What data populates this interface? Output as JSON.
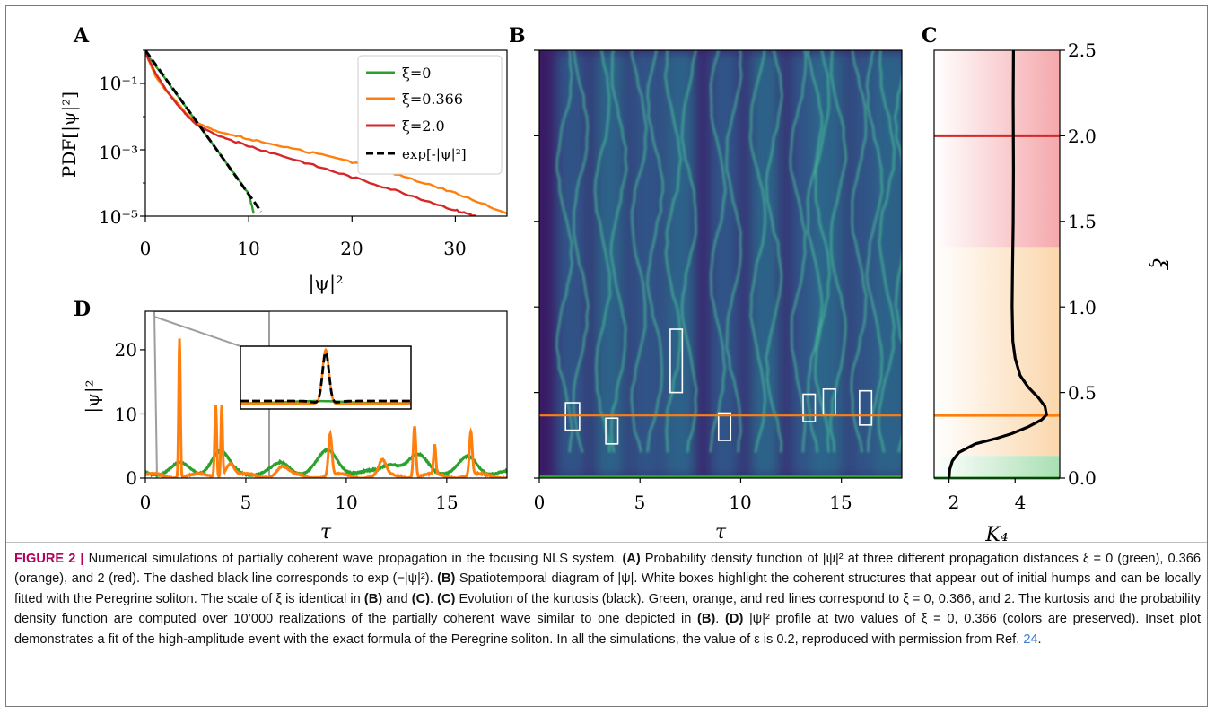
{
  "panels": {
    "A": {
      "letter": "A",
      "ylabel": "PDF[|ψ|²]",
      "xlabel": "|ψ|²",
      "xticks": [
        "0",
        "10",
        "20",
        "30"
      ],
      "yticks": [
        "10⁻¹",
        "10⁻³",
        "10⁻⁵"
      ],
      "legend": [
        "ξ=0",
        "ξ=0.366",
        "ξ=2.0",
        "exp[-|ψ|²]"
      ]
    },
    "B": {
      "letter": "B",
      "xlabel": "τ",
      "xticks": [
        "0",
        "5",
        "10",
        "15"
      ]
    },
    "C": {
      "letter": "C",
      "xlabel": "K₄",
      "ylabel": "ξ",
      "xticks": [
        "2",
        "4"
      ],
      "yticks": [
        "0.0",
        "0.5",
        "1.0",
        "1.5",
        "2.0",
        "2.5"
      ]
    },
    "D": {
      "letter": "D",
      "ylabel": "|ψ|²",
      "xlabel": "τ",
      "xticks": [
        "0",
        "5",
        "10",
        "15"
      ],
      "yticks": [
        "0",
        "10",
        "20"
      ]
    }
  },
  "colors": {
    "green": "#2ca02c",
    "orange": "#ff7f0e",
    "red": "#d62728",
    "black": "#000000",
    "map_dark": "#3b0f5e",
    "map_mid": "#2f5b8c",
    "map_bright": "#35b779"
  },
  "chart_data": [
    {
      "panel": "A",
      "type": "line",
      "yscale": "log",
      "xlim": [
        0,
        35
      ],
      "ylim": [
        1e-05,
        1
      ],
      "legend_position": "top-right",
      "series": [
        {
          "name": "ξ=0",
          "color": "green",
          "x": [
            0,
            2,
            4,
            6,
            8,
            10,
            10.5
          ],
          "y": [
            0.85,
            0.13,
            0.018,
            0.0025,
            0.00034,
            4.5e-05,
            1.2e-05
          ]
        },
        {
          "name": "ξ=0.366",
          "color": "orange",
          "x": [
            0,
            1,
            2,
            3,
            4,
            5,
            7,
            10,
            15,
            20,
            25,
            30,
            35
          ],
          "y": [
            0.85,
            0.16,
            0.06,
            0.028,
            0.012,
            0.0065,
            0.0035,
            0.0021,
            0.00098,
            0.00042,
            0.00016,
            5e-05,
            1.2e-05
          ]
        },
        {
          "name": "ξ=2.0",
          "color": "red",
          "x": [
            0,
            1,
            2,
            3,
            4,
            5,
            7,
            10,
            15,
            20,
            25,
            30,
            32
          ],
          "y": [
            0.85,
            0.2,
            0.065,
            0.025,
            0.011,
            0.0055,
            0.0027,
            0.0013,
            0.00045,
            0.00015,
            5e-05,
            1.5e-05,
            1e-05
          ]
        },
        {
          "name": "exp[-|ψ|²]",
          "color": "black",
          "dashed": true,
          "x": [
            0,
            11.2
          ],
          "y": [
            1,
            1.37e-05
          ]
        }
      ]
    },
    {
      "panel": "B",
      "type": "heatmap",
      "xlim": [
        0,
        18
      ],
      "ylim": [
        0,
        2.5
      ],
      "hlines": [
        {
          "y": 0.366,
          "color": "orange"
        },
        {
          "y": 0,
          "color": "green"
        }
      ],
      "boxes": [
        {
          "tau": [
            1.3,
            2.0
          ],
          "xi": [
            0.28,
            0.44
          ]
        },
        {
          "tau": [
            3.3,
            3.9
          ],
          "xi": [
            0.2,
            0.35
          ]
        },
        {
          "tau": [
            6.5,
            7.1
          ],
          "xi": [
            0.5,
            0.87
          ]
        },
        {
          "tau": [
            8.9,
            9.5
          ],
          "xi": [
            0.22,
            0.38
          ]
        },
        {
          "tau": [
            13.1,
            13.7
          ],
          "xi": [
            0.33,
            0.49
          ]
        },
        {
          "tau": [
            14.1,
            14.7
          ],
          "xi": [
            0.37,
            0.52
          ]
        },
        {
          "tau": [
            15.9,
            16.5
          ],
          "xi": [
            0.31,
            0.51
          ]
        }
      ]
    },
    {
      "panel": "C",
      "type": "line",
      "xlim": [
        1.55,
        5.35
      ],
      "ylim": [
        0,
        2.5
      ],
      "hlines": [
        {
          "y": 2.0,
          "color": "red"
        },
        {
          "y": 0.366,
          "color": "orange"
        },
        {
          "y": 0.0,
          "color": "green"
        }
      ],
      "series": [
        {
          "name": "",
          "color": "black",
          "k4": [
            2.0,
            2.02,
            2.1,
            2.3,
            2.8,
            3.4,
            3.9,
            4.4,
            4.8,
            4.95,
            4.9,
            4.7,
            4.4,
            4.15,
            4.0,
            3.93,
            3.91,
            3.92,
            3.94,
            3.95,
            3.94,
            3.95
          ],
          "xi": [
            0.0,
            0.05,
            0.1,
            0.15,
            0.2,
            0.23,
            0.26,
            0.3,
            0.34,
            0.37,
            0.42,
            0.47,
            0.53,
            0.6,
            0.7,
            0.8,
            1.0,
            1.2,
            1.5,
            1.8,
            2.2,
            2.5
          ]
        }
      ]
    },
    {
      "panel": "D",
      "type": "line",
      "xlim": [
        0,
        18
      ],
      "ylim": [
        0,
        26
      ],
      "series": [
        {
          "name": "",
          "color": "orange"
        },
        {
          "name": "",
          "color": "green"
        }
      ]
    }
  ],
  "caption": {
    "figure_label": "FIGURE 2 |",
    "s1": " Numerical simulations of partially coherent wave propagation in the focusing NLS system. ",
    "a_ref": "(A)",
    "s2": " Probability density function of |ψ|² at three different propagation distances ξ = 0 (green), 0.366 (orange), and 2 (red). The dashed black line corresponds to exp (−|ψ|²). ",
    "b_ref": "(B)",
    "s3": " Spatiotemporal diagram of |ψ|. White boxes highlight the coherent structures that appear out of initial humps and can be locally fitted with the Peregrine soliton. The scale of ξ is identical in ",
    "b_ref2": "(B)",
    "s4": " and ",
    "c_ref": "(C)",
    "s5": ". ",
    "c_ref2": "(C)",
    "s6": " Evolution of the kurtosis (black). Green, orange, and red lines correspond to ξ = 0, 0.366, and 2. The kurtosis and the probability density function are computed over 10’000 realizations of the partially coherent wave similar to one depicted in ",
    "b_ref3": "(B)",
    "s7": ". ",
    "d_ref": "(D)",
    "s8": " |ψ|² profile at two values of ξ = 0, 0.366 (colors are preserved). Inset plot demonstrates a fit of the high-amplitude event with the exact formula of the Peregrine soliton. In all the simulations, the value of ε is 0.2, reproduced with permission from Ref. ",
    "ref_number": "24",
    "s9": "."
  }
}
